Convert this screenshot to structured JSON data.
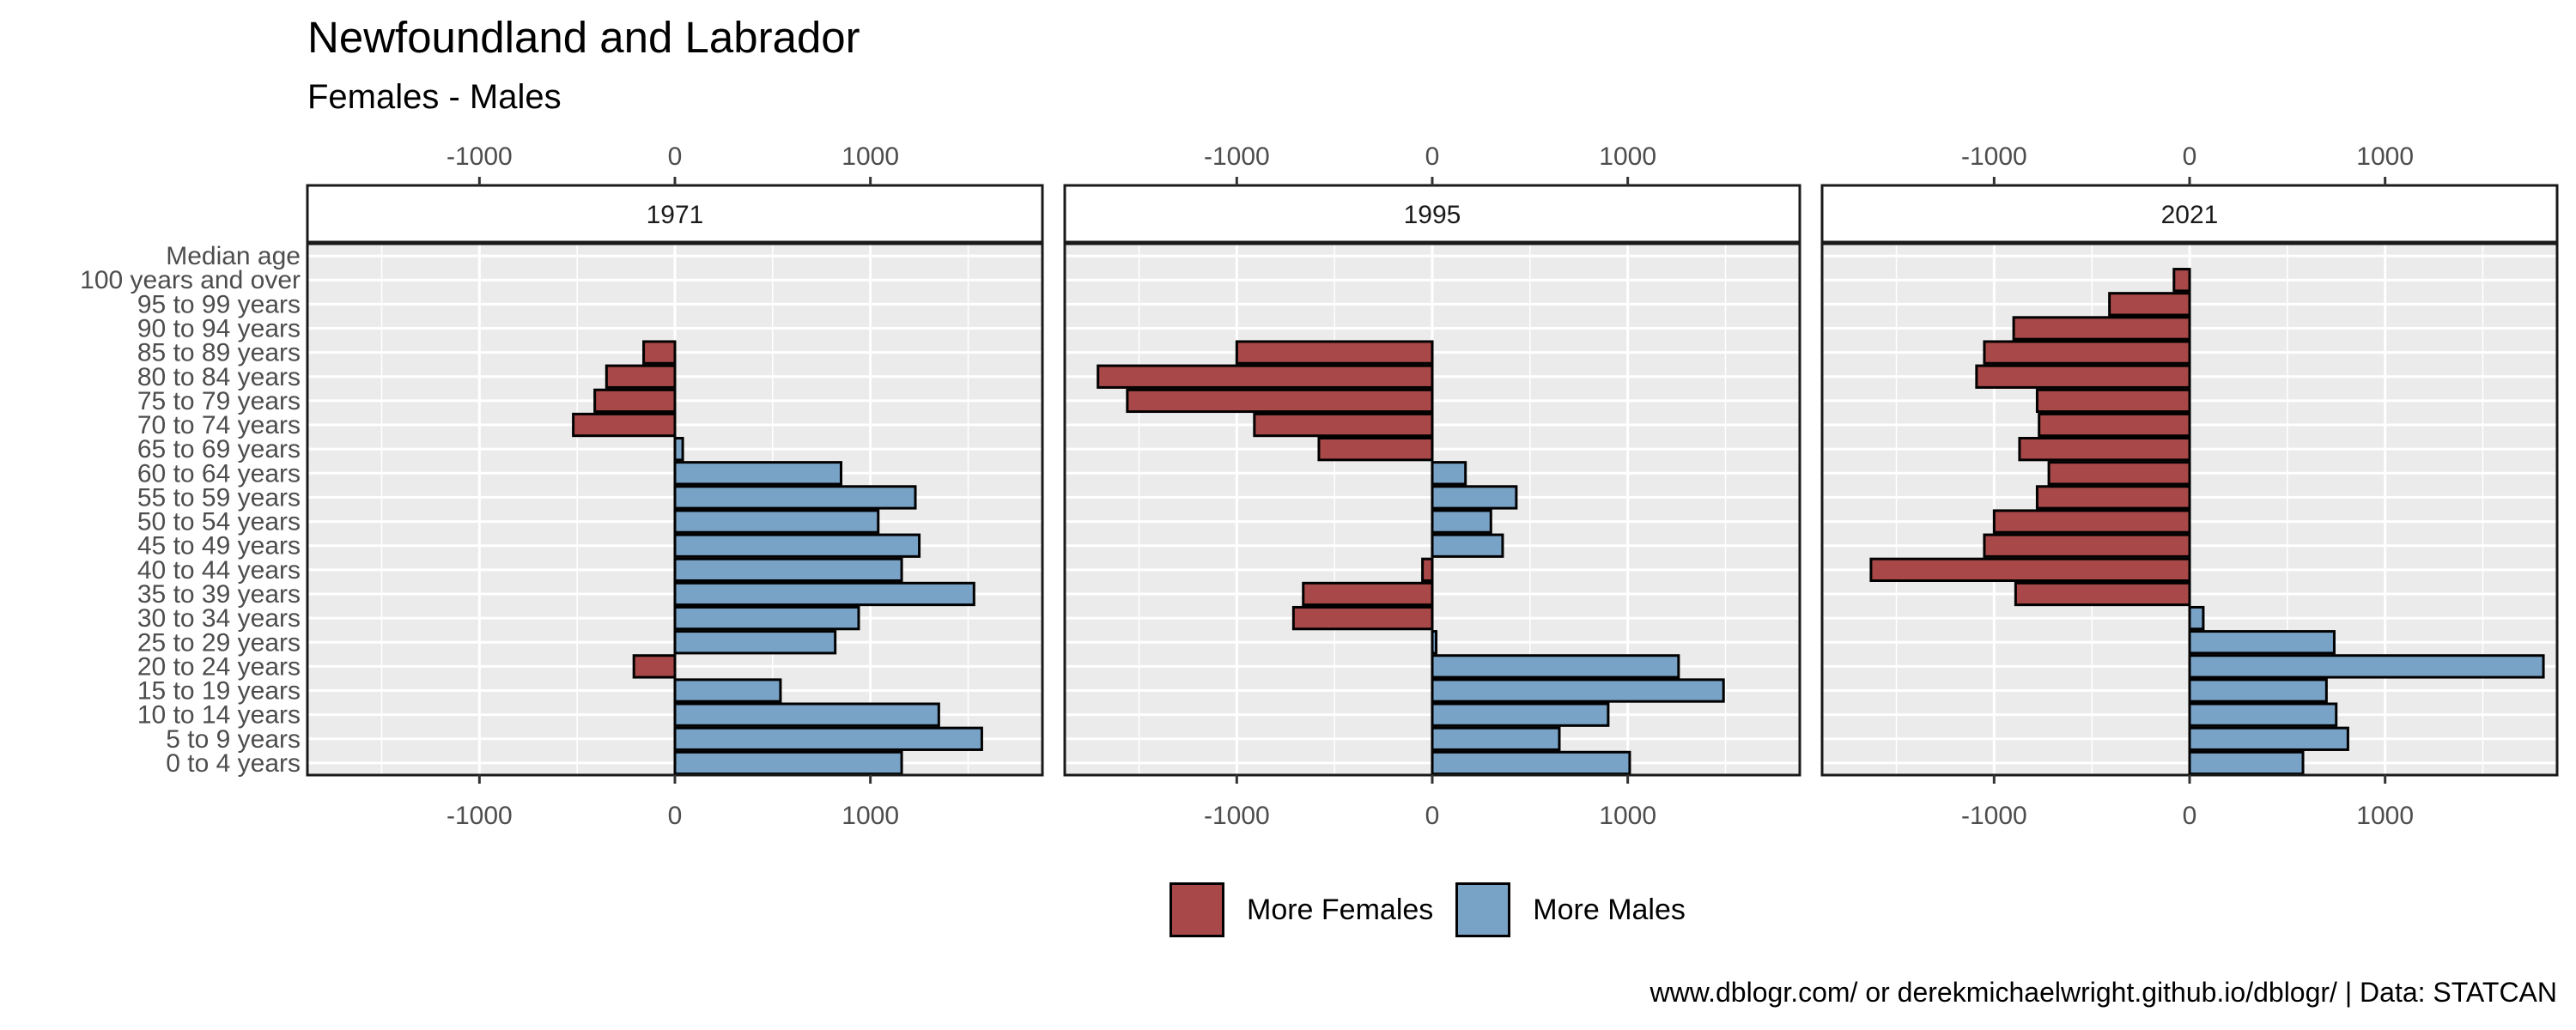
{
  "title": "Newfoundland and Labrador",
  "subtitle": "Females - Males",
  "caption": "www.dblogr.com/ or derekmichaelwright.github.io/dblogr/ | Data: STATCAN",
  "colors": {
    "females": "#a84848",
    "males": "#78a2c6",
    "panel_bg": "#ebebeb"
  },
  "legend": [
    {
      "label": "More Females",
      "color": "#a84848"
    },
    {
      "label": "More Males",
      "color": "#78a2c6"
    }
  ],
  "chart_data": {
    "type": "bar",
    "orientation": "horizontal",
    "categories": [
      "Median age",
      "100 years and over",
      "95 to 99 years",
      "90 to 94 years",
      "85 to 89 years",
      "80 to 84 years",
      "75 to 79 years",
      "70 to 74 years",
      "65 to 69 years",
      "60 to 64 years",
      "55 to 59 years",
      "50 to 54 years",
      "45 to 49 years",
      "40 to 44 years",
      "35 to 39 years",
      "30 to 34 years",
      "25 to 29 years",
      "20 to 24 years",
      "15 to 19 years",
      "10 to 14 years",
      "5 to 9 years",
      "0 to 4 years"
    ],
    "xlim": [
      -1880,
      1880
    ],
    "xticks": [
      -1000,
      0,
      1000
    ],
    "xtick_labels": [
      "-1000",
      "0",
      "1000"
    ],
    "grid": true,
    "legend_position": "bottom",
    "panels": [
      {
        "label": "1971",
        "values": [
          0,
          0,
          0,
          0,
          -160,
          -350,
          -410,
          -520,
          40,
          850,
          1230,
          1040,
          1250,
          1160,
          1530,
          940,
          820,
          -210,
          540,
          1350,
          1570,
          1160
        ]
      },
      {
        "label": "1995",
        "values": [
          0,
          0,
          0,
          0,
          -1000,
          -1710,
          -1560,
          -910,
          -580,
          170,
          430,
          300,
          360,
          -50,
          -660,
          -710,
          20,
          1260,
          1490,
          900,
          650,
          1010
        ]
      },
      {
        "label": "2021",
        "values": [
          0,
          -80,
          -410,
          -900,
          -1050,
          -1090,
          -780,
          -770,
          -870,
          -720,
          -780,
          -1000,
          -1050,
          -1630,
          -890,
          70,
          740,
          1810,
          700,
          750,
          810,
          580
        ]
      }
    ]
  }
}
